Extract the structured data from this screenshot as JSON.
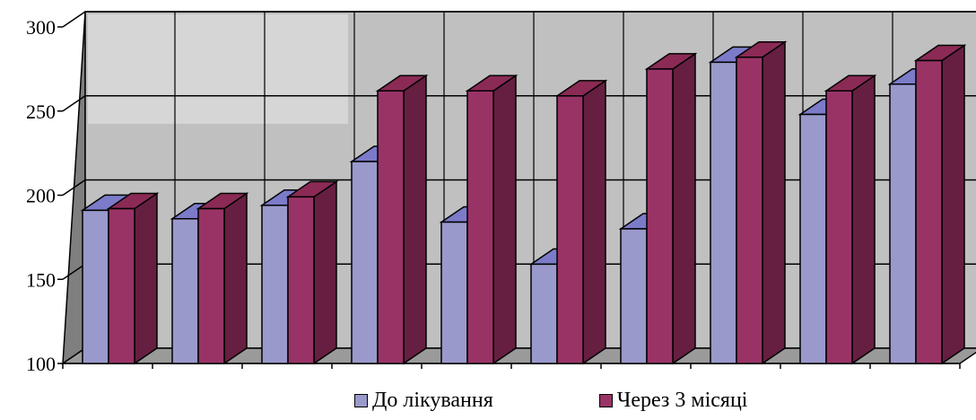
{
  "chart_data": {
    "type": "bar",
    "subtype": "3d-clustered-column",
    "categories": [
      "",
      "",
      "",
      "",
      "",
      "",
      "",
      "",
      "",
      ""
    ],
    "series": [
      {
        "name": "До лікування",
        "color": "#9999cc",
        "values": [
          191,
          186,
          194,
          220,
          184,
          159,
          180,
          279,
          248,
          266
        ]
      },
      {
        "name": "Через 3 місяці",
        "color": "#993366",
        "values": [
          192,
          192,
          199,
          262,
          262,
          259,
          275,
          282,
          262,
          280
        ]
      }
    ],
    "yticks": [
      100,
      150,
      200,
      250,
      300
    ],
    "ylim": [
      100,
      300
    ],
    "grid": true,
    "legend_position": "bottom",
    "colors": {
      "wall": "#c0c0c0",
      "wall_side": "#808080",
      "floor": "#999999",
      "series1_top": "#7b7bc9",
      "series1_side": "#6c6ca0",
      "series2_top": "#8b2a55",
      "series2_side": "#661f40"
    }
  }
}
